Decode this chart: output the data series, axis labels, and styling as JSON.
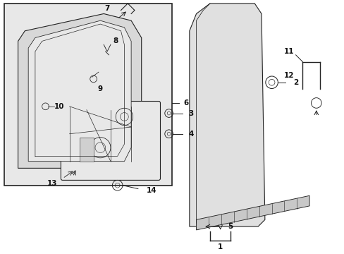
{
  "bg_color": "#ffffff",
  "fig_bg": "#ffffff",
  "inset_bg": "#e8e8e8",
  "door_bg": "#e8e8e8",
  "line_color": "#222222",
  "label_color": "#111111"
}
